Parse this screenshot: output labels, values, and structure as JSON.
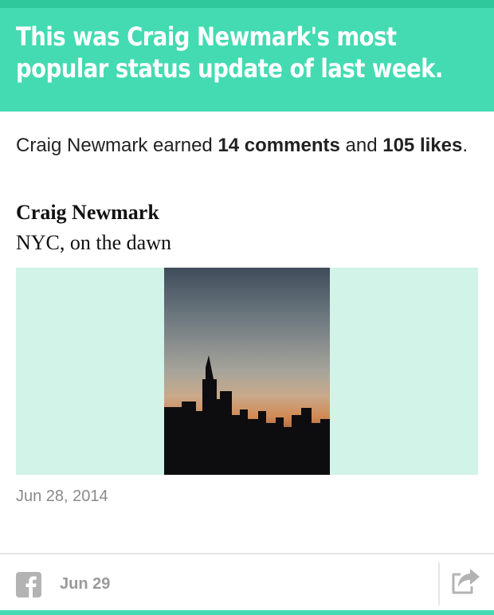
{
  "header": {
    "title": "This was Craig Newmark's most popular status update of last week."
  },
  "summary": {
    "prefix": "Craig Newmark earned ",
    "comments": "14 comments",
    "middle": " and ",
    "likes": "105 likes",
    "suffix": "."
  },
  "post": {
    "author": "Craig Newmark",
    "text": "NYC, on the dawn",
    "date": "Jun 28, 2014"
  },
  "footer": {
    "date": "Jun 29",
    "icons": [
      "facebook-icon",
      "share-icon"
    ]
  },
  "colors": {
    "header_bg": "#44dbb2",
    "top_strip": "#2fc79c",
    "media_bg": "#d1f3e8"
  }
}
